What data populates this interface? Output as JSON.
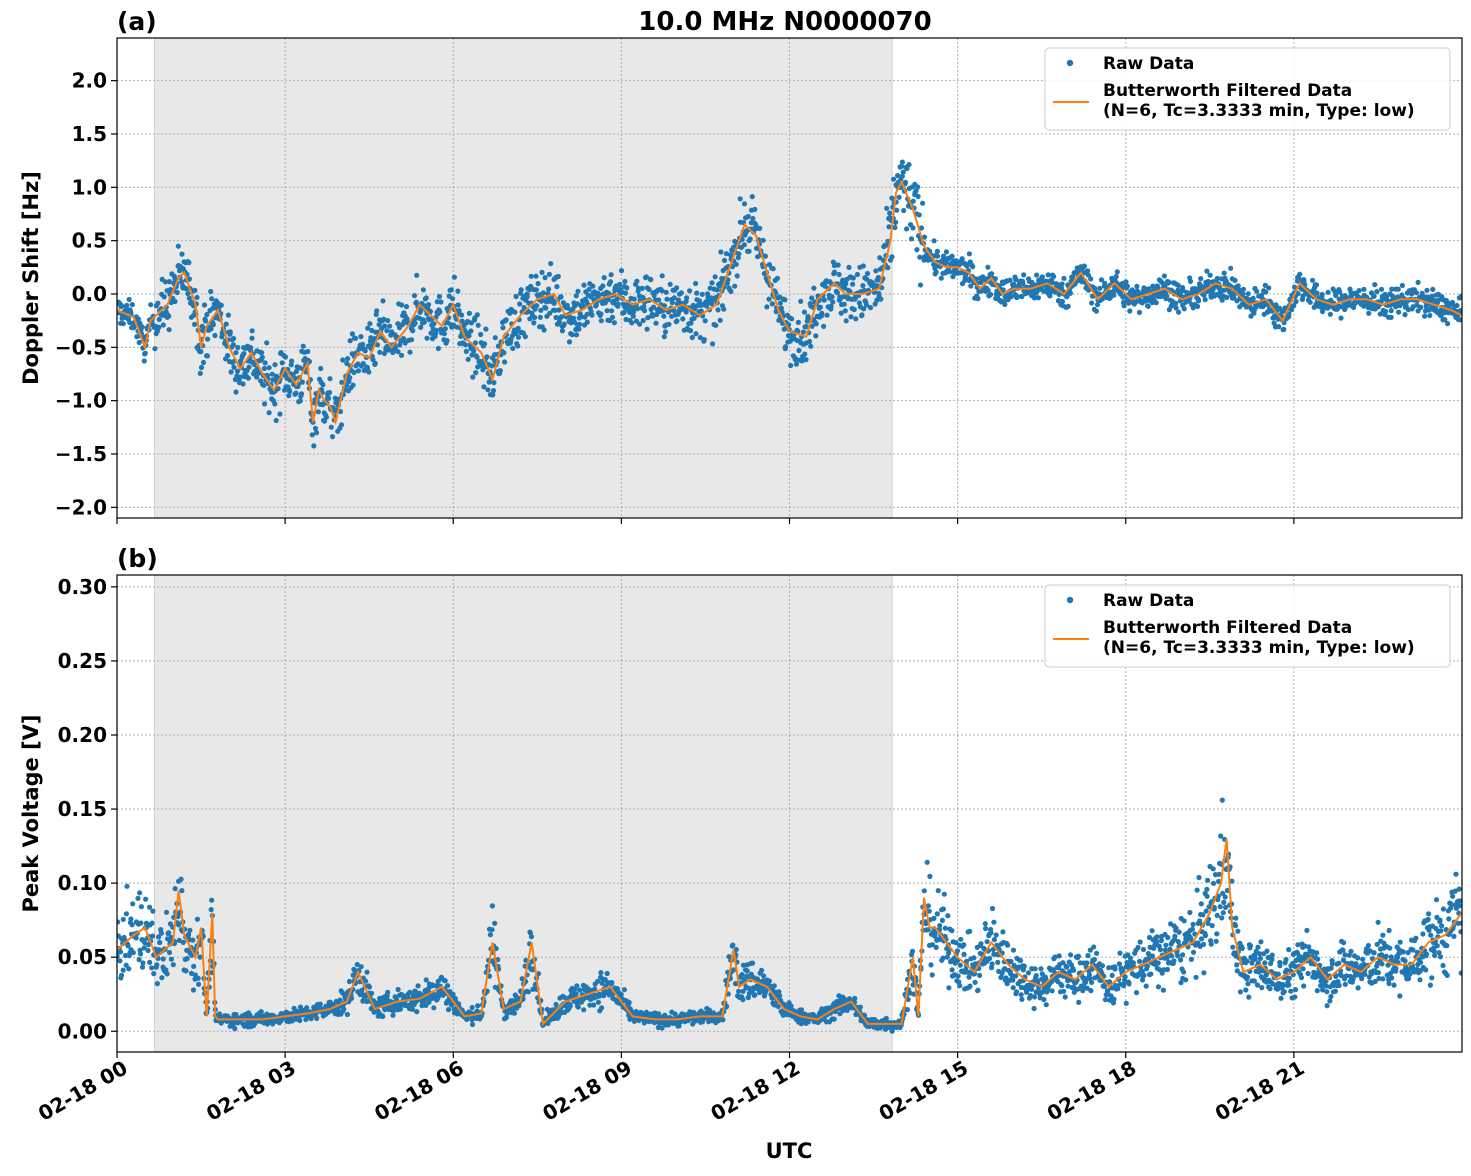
{
  "figure": {
    "title": "10.0 MHz N0000070",
    "xlabel": "UTC"
  },
  "colors": {
    "raw": "#1f77b4",
    "filtered": "#ff7f0e",
    "shade": "#e8e8e8",
    "grid": "#b0b0b0"
  },
  "chart_data": [
    {
      "type": "scatter",
      "panel_label": "(a)",
      "ylabel": "Doppler Shift [Hz]",
      "xlim_hours": [
        0,
        24
      ],
      "ylim": [
        -2.1,
        2.4
      ],
      "yticks": [
        -2.0,
        -1.5,
        -1.0,
        -0.5,
        0.0,
        0.5,
        1.0,
        1.5,
        2.0
      ],
      "ytick_labels": [
        "−2.0",
        "−1.5",
        "−1.0",
        "−0.5",
        "0.0",
        "0.5",
        "1.0",
        "1.5",
        "2.0"
      ],
      "night_shade_hours": [
        0.67,
        13.83
      ],
      "grid": true,
      "legend": {
        "placement": "top-right",
        "entries": [
          "Raw Data",
          "Butterworth Filtered Data\n(N=6, Tc=3.3333 min, Type: low)"
        ]
      },
      "series": [
        {
          "name": "Butterworth Filtered Data",
          "kind": "line",
          "x_hours": [
            0,
            0.3,
            0.5,
            0.6,
            0.9,
            1.1,
            1.2,
            1.4,
            1.5,
            1.6,
            1.8,
            2.0,
            2.2,
            2.4,
            2.6,
            2.8,
            3.0,
            3.2,
            3.4,
            3.5,
            3.6,
            3.7,
            3.8,
            3.9,
            4.1,
            4.3,
            4.5,
            4.7,
            4.9,
            5.2,
            5.4,
            5.6,
            5.8,
            6.0,
            6.2,
            6.5,
            6.7,
            6.9,
            7.2,
            7.5,
            7.8,
            8.0,
            8.3,
            8.6,
            8.9,
            9.2,
            9.5,
            9.8,
            10.1,
            10.4,
            10.7,
            11.0,
            11.2,
            11.4,
            11.6,
            11.8,
            12.0,
            12.3,
            12.5,
            12.8,
            13.0,
            13.3,
            13.6,
            13.8,
            13.9,
            14.0,
            14.2,
            14.4,
            14.6,
            14.8,
            15.0,
            15.2,
            15.4,
            15.6,
            15.8,
            16.0,
            16.3,
            16.6,
            16.9,
            17.2,
            17.5,
            17.8,
            18.1,
            18.4,
            18.7,
            19.0,
            19.3,
            19.6,
            19.9,
            20.2,
            20.5,
            20.8,
            21.1,
            21.4,
            21.7,
            22.0,
            22.3,
            22.6,
            22.9,
            23.2,
            23.5,
            23.8,
            24.0
          ],
          "y": [
            -0.15,
            -0.22,
            -0.5,
            -0.25,
            -0.1,
            0.15,
            0.2,
            -0.1,
            -0.5,
            -0.3,
            -0.15,
            -0.5,
            -0.7,
            -0.55,
            -0.75,
            -0.9,
            -0.7,
            -0.85,
            -0.65,
            -1.2,
            -0.9,
            -1.0,
            -1.05,
            -1.2,
            -0.75,
            -0.55,
            -0.6,
            -0.35,
            -0.5,
            -0.3,
            -0.1,
            -0.2,
            -0.3,
            -0.1,
            -0.4,
            -0.55,
            -0.8,
            -0.4,
            -0.2,
            -0.05,
            0.0,
            -0.2,
            -0.15,
            -0.05,
            0.0,
            -0.1,
            -0.05,
            -0.15,
            -0.1,
            -0.2,
            -0.1,
            0.35,
            0.65,
            0.55,
            0.2,
            -0.15,
            -0.35,
            -0.4,
            -0.05,
            0.1,
            0.0,
            0.0,
            0.05,
            0.5,
            0.95,
            1.05,
            0.8,
            0.45,
            0.3,
            0.25,
            0.25,
            0.2,
            0.05,
            0.15,
            0.0,
            0.05,
            0.05,
            0.1,
            0.0,
            0.2,
            -0.05,
            0.1,
            -0.05,
            0.0,
            0.05,
            -0.05,
            0.0,
            0.1,
            0.05,
            -0.1,
            -0.05,
            -0.25,
            0.1,
            -0.05,
            -0.1,
            -0.05,
            -0.05,
            -0.1,
            -0.05,
            -0.05,
            -0.1,
            -0.15,
            -0.2
          ]
        }
      ]
    },
    {
      "type": "scatter",
      "panel_label": "(b)",
      "ylabel": "Peak Voltage [V]",
      "xlim_hours": [
        0,
        24
      ],
      "ylim": [
        -0.014,
        0.308
      ],
      "yticks": [
        0.0,
        0.05,
        0.1,
        0.15,
        0.2,
        0.25,
        0.3
      ],
      "ytick_labels": [
        "0.00",
        "0.05",
        "0.10",
        "0.15",
        "0.20",
        "0.25",
        "0.30"
      ],
      "night_shade_hours": [
        0.67,
        13.83
      ],
      "grid": true,
      "legend": {
        "placement": "top-right",
        "entries": [
          "Raw Data",
          "Butterworth Filtered Data\n(N=6, Tc=3.3333 min, Type: low)"
        ]
      },
      "series": [
        {
          "name": "Butterworth Filtered Data",
          "kind": "line",
          "x_hours": [
            0,
            0.3,
            0.5,
            0.7,
            1.0,
            1.1,
            1.2,
            1.4,
            1.5,
            1.6,
            1.7,
            1.75,
            1.8,
            2.2,
            2.6,
            3.0,
            3.4,
            3.8,
            4.1,
            4.3,
            4.6,
            5.0,
            5.4,
            5.8,
            6.2,
            6.5,
            6.7,
            6.9,
            7.2,
            7.4,
            7.6,
            8.0,
            8.4,
            8.8,
            9.2,
            9.6,
            10.0,
            10.4,
            10.8,
            11.0,
            11.1,
            11.3,
            11.6,
            11.9,
            12.2,
            12.5,
            12.8,
            13.1,
            13.4,
            13.7,
            14.0,
            14.2,
            14.3,
            14.4,
            14.5,
            14.6,
            14.8,
            15.0,
            15.3,
            15.6,
            15.9,
            16.2,
            16.5,
            16.8,
            17.1,
            17.4,
            17.7,
            18.0,
            18.3,
            18.6,
            18.9,
            19.2,
            19.5,
            19.7,
            19.8,
            19.9,
            20.1,
            20.4,
            20.7,
            21.0,
            21.3,
            21.6,
            21.9,
            22.2,
            22.5,
            22.8,
            23.1,
            23.4,
            23.7,
            24.0
          ],
          "y": [
            0.055,
            0.065,
            0.07,
            0.05,
            0.06,
            0.095,
            0.065,
            0.05,
            0.07,
            0.01,
            0.08,
            0.01,
            0.008,
            0.008,
            0.008,
            0.01,
            0.012,
            0.015,
            0.02,
            0.04,
            0.015,
            0.02,
            0.022,
            0.03,
            0.01,
            0.012,
            0.06,
            0.015,
            0.02,
            0.06,
            0.005,
            0.02,
            0.025,
            0.03,
            0.01,
            0.008,
            0.008,
            0.01,
            0.01,
            0.055,
            0.03,
            0.035,
            0.03,
            0.015,
            0.01,
            0.008,
            0.015,
            0.02,
            0.005,
            0.005,
            0.005,
            0.05,
            0.01,
            0.09,
            0.07,
            0.07,
            0.06,
            0.05,
            0.04,
            0.06,
            0.045,
            0.035,
            0.03,
            0.04,
            0.035,
            0.045,
            0.03,
            0.04,
            0.045,
            0.05,
            0.055,
            0.06,
            0.08,
            0.1,
            0.13,
            0.07,
            0.04,
            0.045,
            0.035,
            0.04,
            0.05,
            0.035,
            0.045,
            0.04,
            0.05,
            0.045,
            0.045,
            0.06,
            0.065,
            0.08
          ]
        }
      ]
    }
  ],
  "x_ticks": {
    "hours": [
      0,
      3,
      6,
      9,
      12,
      15,
      18,
      21
    ],
    "labels": [
      "02-18 00",
      "02-18 03",
      "02-18 06",
      "02-18 09",
      "02-18 12",
      "02-18 15",
      "02-18 18",
      "02-18 21"
    ]
  }
}
